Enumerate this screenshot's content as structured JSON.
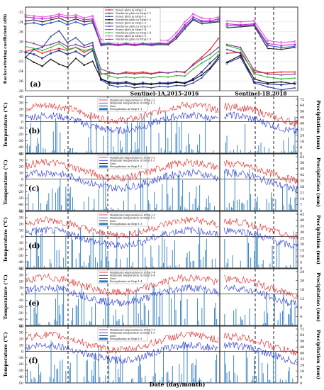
{
  "figure": {
    "sections": [
      "Sentinel-1A,2015-2016",
      "Sentinel-1B,2018"
    ],
    "xlabel": "Date (day/month)"
  },
  "panel_a": {
    "label": "(a)",
    "ylabel": "Backscattering coefficient (dB)",
    "yticks": [
      "-12",
      "-14",
      "-16",
      "-18",
      "-20",
      "-22",
      "-24",
      "-26",
      "-28"
    ],
    "series": [
      {
        "name": "Forest plots in Strip-1-1",
        "color": "#e8231c",
        "marker": "diamond",
        "a": [
          -20,
          -19.6,
          -20.4,
          -19.8,
          -19.4,
          -19.8,
          -19.2,
          -20.2,
          -19.4,
          -24.6,
          -24.4,
          -24.6,
          -24.2,
          -24.4,
          -24.2,
          -24.5,
          -24.2,
          -24.4,
          -24.1,
          -24.3,
          -22.6,
          -21.2,
          -19.6,
          -17.4
        ],
        "b": [
          -20.4,
          -20.2,
          -24.2,
          -24.4,
          -24.2,
          -24.2
        ]
      },
      {
        "name": "Nonforest plots in Strip-1-1",
        "color": "#1e2b8f",
        "marker": "circle",
        "a": [
          -20.2,
          -20.6,
          -21.4,
          -20.4,
          -19.8,
          -20.6,
          -20,
          -21,
          -19.8,
          -25.6,
          -26.2,
          -26.4,
          -26.2,
          -26.6,
          -26.4,
          -26.6,
          -26.4,
          -26.4,
          -26.2,
          -26.4,
          -25.6,
          -24.2,
          -22.4,
          -20.8
        ],
        "b": [
          -22.4,
          -21.2,
          -26.2,
          -26.6,
          -26.8,
          -26.4
        ]
      },
      {
        "name": "Forest plots in Strip-1-2",
        "color": "#2b3a9a",
        "marker": "triangle",
        "a": [
          -21.2,
          -19.6,
          -19.2,
          -17,
          -15.8,
          -18.2,
          -17.2,
          -18.8,
          -18.2,
          -25.8,
          -26.8,
          -27.2,
          -27,
          -27.4,
          -27.2,
          -27.4,
          -27.1,
          -27.2,
          -26.9,
          -27,
          -26.4,
          -25.4,
          -23.6,
          -21.6
        ],
        "b": [
          -19.6,
          -20.4,
          -26.4,
          -27.2,
          -27.8,
          -27.4
        ]
      },
      {
        "name": "Nonforest plots in Strip-1-2",
        "color": "#0a0a0a",
        "marker": "triangle",
        "a": [
          -21.2,
          -22.2,
          -23,
          -21.6,
          -22.6,
          -23.2,
          -21.4,
          -22.8,
          -22,
          -25.6,
          -26.4,
          -26.6,
          -26.4,
          -26.8,
          -26.6,
          -26.7,
          -26.5,
          -26.6,
          -26.3,
          -26.5,
          -25.8,
          -24.8,
          -23.4,
          -21.2
        ],
        "b": [
          -22.2,
          -20.8,
          -25.6,
          -26.4,
          -26.2,
          -26.6
        ]
      },
      {
        "name": "Forest plots in Strip-1-3",
        "color": "#222222",
        "marker": "x",
        "a": [
          -13.8,
          -13.6,
          -14,
          -13.6,
          -13.2,
          -14,
          -13.4,
          -14,
          -13.8,
          -18.8,
          -18.6,
          -18.8,
          -18.6,
          -18.8,
          -18.6,
          -18.8,
          -18.6,
          -18.7,
          -17.4,
          -15.4,
          -13.6,
          -14.4,
          -14.2,
          -14
        ],
        "b": [
          -15.2,
          -15,
          -14.8,
          -19.4,
          -19.6,
          -19.2
        ]
      },
      {
        "name": "Nonforest plots in Strip-1-3",
        "color": "#3355cc",
        "marker": "circle",
        "a": [
          -14.4,
          -14.2,
          -14.6,
          -14.2,
          -13.8,
          -14.6,
          -14,
          -14.6,
          -14.2,
          -18.6,
          -18.4,
          -18.6,
          -18.4,
          -18.6,
          -18.4,
          -18.6,
          -18.4,
          -18.5,
          -17,
          -15,
          -13.4,
          -14,
          -14,
          -13.8
        ],
        "b": [
          -14.8,
          -14.8,
          -14.6,
          -18.8,
          -19.2,
          -19
        ]
      },
      {
        "name": "Forest plots in Strip-1-4",
        "color": "#cc22cc",
        "marker": "square",
        "a": [
          -13,
          -13.2,
          -13.4,
          -13.2,
          -12.8,
          -13.2,
          -13,
          -13.6,
          -13.4,
          -18.4,
          -18.4,
          -18.6,
          -18.4,
          -18.6,
          -18.4,
          -18.5,
          -18.3,
          -18.4,
          -16.8,
          -14.6,
          -13,
          -13.8,
          -13.8,
          -13.4
        ],
        "b": [
          -14.4,
          -14.6,
          -14.4,
          -18.4,
          -18.8,
          -18.6
        ]
      },
      {
        "name": "Nonforest plots in Strip-1-4",
        "color": "#2fb82f",
        "marker": "triangle",
        "a": [
          -19,
          -19.4,
          -19.8,
          -19.2,
          -18.4,
          -19.6,
          -19.2,
          -19.8,
          -19.4,
          -24.4,
          -25,
          -25.4,
          -25.2,
          -25.4,
          -25.2,
          -25.4,
          -25.1,
          -25.2,
          -24.9,
          -25,
          -23.6,
          -22.4,
          -21.4,
          -20
        ],
        "b": [
          -18.8,
          -19.6,
          -24.6,
          -25.2,
          -25.6,
          -25.4
        ]
      },
      {
        "name": "Forest plots in Strip-1-5",
        "color": "#e060e0",
        "marker": "circle",
        "a": [
          -12.6,
          -12.8,
          -13,
          -12.8,
          -12.4,
          -12.8,
          -12.6,
          -13.2,
          -12.8,
          -17.6,
          -17.8,
          -18,
          -17.8,
          -18,
          -17.8,
          -17.9,
          -17.7,
          -17.8,
          -16.2,
          -14,
          -12.4,
          -13.2,
          -13.4,
          -13
        ],
        "b": [
          -13.8,
          -14,
          -13.8,
          -17.8,
          -18.2,
          -18
        ]
      },
      {
        "name": "Nonforest plots in Strip-1-5",
        "color": "#7a3a9a",
        "marker": "diamond",
        "a": [
          -18,
          -18.4,
          -19,
          -18.6,
          -18,
          -19,
          -18.6,
          -19.2,
          -18.8,
          -23.6,
          -24.2,
          -24.6,
          -24.4,
          -24.6,
          -24.4,
          -24.6,
          -24.3,
          -24.4,
          -24.1,
          -24.2,
          -22.8,
          -21.6,
          -20.6,
          -19.2
        ],
        "b": [
          -18.6,
          -19.2,
          -23.8,
          -24.6,
          -24.8,
          -24.6
        ]
      }
    ]
  },
  "climate_panels": [
    {
      "label": "(b)",
      "ylabel": "Temperature (°C)",
      "y2label": "Precipitation (mm)",
      "yticks": [
        "40",
        "30",
        "20",
        "10",
        "0",
        "-10",
        "-20",
        "-30",
        "-40",
        "-50"
      ],
      "y2ticks": [
        "72",
        "64",
        "56",
        "48",
        "40",
        "32",
        "24",
        "16",
        "8",
        "0"
      ],
      "legend": [
        "Maximum temperature in Strip-1-1",
        "Minimum temperature in Strip-1-1",
        "Zero",
        "Precipitation in Strip-1-1"
      ]
    },
    {
      "label": "(c)",
      "ylabel": "Temperature (°C)",
      "y2label": "Precipitation (mm)",
      "yticks": [
        "40",
        "30",
        "20",
        "10",
        "0",
        "-10",
        "-20",
        "-30",
        "-40",
        "-50"
      ],
      "y2ticks": [
        "63",
        "56",
        "49",
        "42",
        "35",
        "28",
        "21",
        "14",
        "7",
        "0"
      ],
      "legend": [
        "Maximum temperature in Strip-1-2",
        "Minimum temperature in Strip-1-2",
        "Zero",
        "Precipitation in Strip-1-2"
      ]
    },
    {
      "label": "(d)",
      "ylabel": "Temperature (°C)",
      "y2label": "Precipitation (mm)",
      "yticks": [
        "40",
        "30",
        "20",
        "10",
        "0",
        "-10",
        "-20",
        "-30",
        "-40",
        "-50"
      ],
      "y2ticks": [
        "45",
        "40",
        "35",
        "30",
        "25",
        "20",
        "15",
        "10",
        "5",
        "0"
      ],
      "legend": [
        "Maximum temperature in Strip-1-3",
        "Minimum temperature in Strip-1-3",
        "Zero",
        "Precipitation in Strip-1-3"
      ]
    },
    {
      "label": "(e)",
      "ylabel": "Temperature (°C)",
      "y2label": "Precipitation (mm)",
      "yticks": [
        "40",
        "30",
        "20",
        "10",
        "0",
        "-10",
        "-20",
        "-30",
        "-40",
        "-50"
      ],
      "y2ticks": [
        "24",
        "20",
        "16",
        "12",
        "8",
        "4",
        "0"
      ],
      "legend": [
        "Maximum temperature in Strip-1-4",
        "Minimum temperature in Strip-1-4",
        "Zero",
        "Precipitation in Strip-1-4"
      ]
    },
    {
      "label": "(f)",
      "ylabel": "Temperature (°C)",
      "y2label": "Precipitation (mm)",
      "yticks": [
        "40",
        "30",
        "20",
        "10",
        "0",
        "-10",
        "-20",
        "-30",
        "-40",
        "-50"
      ],
      "y2ticks": [
        "72",
        "64",
        "56",
        "48",
        "40",
        "32",
        "24",
        "16",
        "8",
        "0"
      ],
      "legend": [
        "Maximum temperature in Strip-1-5",
        "Minimum temperature in Strip-1-5",
        "Zero",
        "Precipitation in Strip-1-5"
      ]
    }
  ],
  "chart_data": {
    "type": "line",
    "x_axis": "Date (day/month)",
    "sections": [
      "Sentinel-1A,2015-2016",
      "Sentinel-1B,2018"
    ],
    "panel_a_ylabel": "Backscattering coefficient (dB)",
    "panel_a_ylim": [
      -28,
      -11
    ],
    "temperature_ylim": [
      -50,
      40
    ],
    "note": "Backscatter series are per-acquisition values; climate panels show daily max/min temperature and precipitation"
  }
}
